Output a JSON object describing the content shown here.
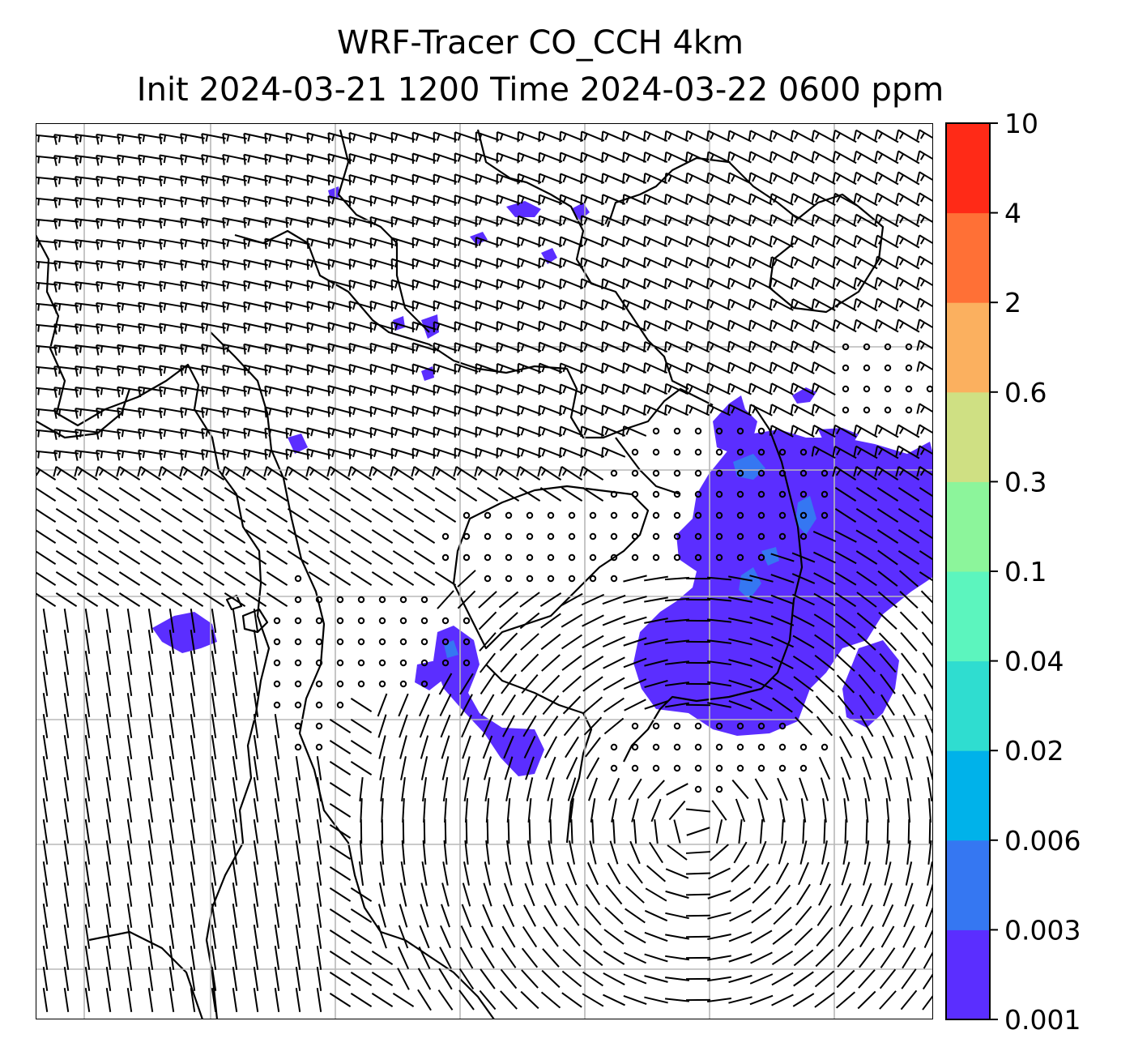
{
  "title": {
    "line1": "WRF-Tracer CO_CCH 4km",
    "line2": "Init 2024-03-21 1200 Time 2024-03-22 0600 ppm"
  },
  "colorbar": {
    "levels": [
      {
        "label": "0.001",
        "color": "#5B2EFF"
      },
      {
        "label": "0.003",
        "color": "#3577F2"
      },
      {
        "label": "0.006",
        "color": "#00B2EA"
      },
      {
        "label": "0.02",
        "color": "#2FDDD0"
      },
      {
        "label": "0.04",
        "color": "#5CF5BE"
      },
      {
        "label": "0.1",
        "color": "#8CF59B"
      },
      {
        "label": "0.3",
        "color": "#CFE083"
      },
      {
        "label": "0.6",
        "color": "#FBB05F"
      },
      {
        "label": "2",
        "color": "#FF7036"
      },
      {
        "label": "4",
        "color": "#FF2A17"
      },
      {
        "label": "10",
        "color": ""
      }
    ]
  },
  "map": {
    "grid": "on",
    "wind_symbol": "wind-barb",
    "calm_symbol": "calm-circle",
    "tracer_color": "#5B2EFF",
    "tracer_core_color": "#3577F2"
  }
}
